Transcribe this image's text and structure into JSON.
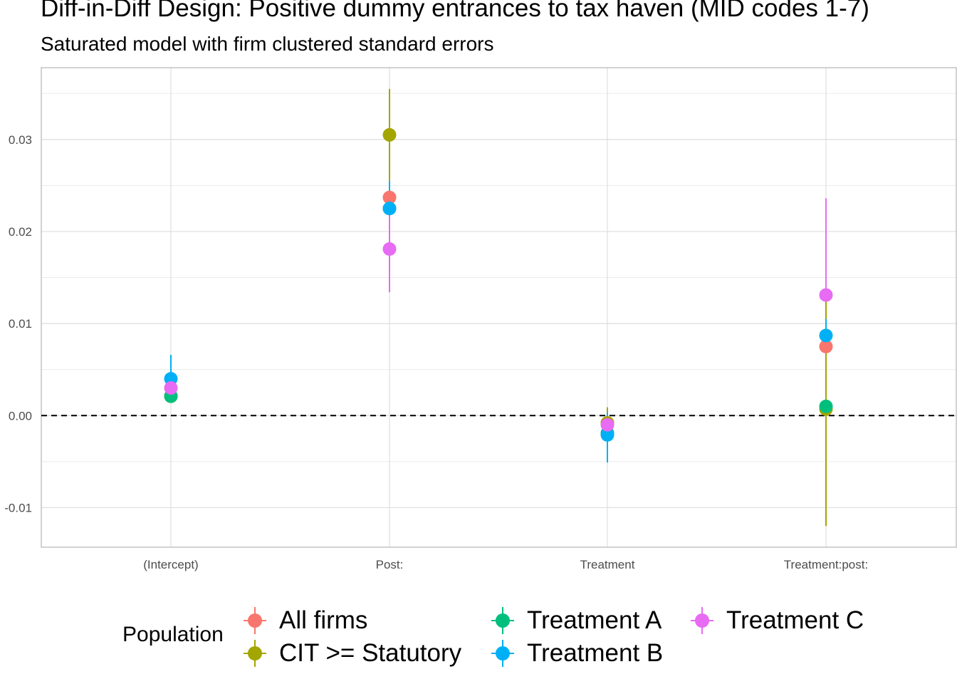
{
  "chart_data": {
    "type": "scatter",
    "title": "Diff-in-Diff Design: Positive dummy entrances to tax haven (MID codes 1-7)",
    "subtitle": "Saturated model with firm clustered standard errors",
    "xlabel": "",
    "ylabel": "",
    "categories": [
      "(Intercept)",
      "Post:",
      "Treatment",
      "Treatment:post:"
    ],
    "y_ticks": [
      -0.01,
      0.0,
      0.01,
      0.02,
      0.03
    ],
    "y_tick_labels": [
      "-0.01",
      "0.00",
      "0.01",
      "0.02",
      "0.03"
    ],
    "ylim": [
      -0.0143,
      0.0378
    ],
    "reference_line": {
      "y": 0,
      "style": "dashed"
    },
    "grid": true,
    "legend": {
      "title": "Population",
      "position": "bottom"
    },
    "series": [
      {
        "name": "All firms",
        "color": "#F8766D",
        "estimates": [
          0.0021,
          0.0237,
          -0.0008,
          0.0075
        ],
        "ci_low": [
          0.0021,
          0.0237,
          -0.0008,
          0.0075
        ],
        "ci_high": [
          0.0021,
          0.0237,
          -0.0008,
          0.0075
        ]
      },
      {
        "name": "CIT >= Statutory",
        "color": "#A3A500",
        "estimates": [
          0.0021,
          0.0305,
          -0.0008,
          0.0007
        ],
        "ci_low": [
          0.0021,
          0.0255,
          -0.0022,
          -0.012
        ],
        "ci_high": [
          0.0021,
          0.0355,
          0.0009,
          0.013
        ]
      },
      {
        "name": "Treatment A",
        "color": "#00BF7D",
        "estimates": [
          0.0021,
          0.0225,
          -0.0019,
          0.001
        ],
        "ci_low": [
          0.0021,
          0.0225,
          -0.0019,
          0.001
        ],
        "ci_high": [
          0.0021,
          0.0225,
          -0.0019,
          0.001
        ]
      },
      {
        "name": "Treatment B",
        "color": "#00B0F6",
        "estimates": [
          0.004,
          0.0225,
          -0.0021,
          0.0087
        ],
        "ci_low": [
          0.0021,
          0.0198,
          -0.0051,
          0.007
        ],
        "ci_high": [
          0.0066,
          0.0255,
          0.0003,
          0.0105
        ]
      },
      {
        "name": "Treatment C",
        "color": "#E76BF3",
        "estimates": [
          0.003,
          0.0181,
          -0.001,
          0.0131
        ],
        "ci_low": [
          0.003,
          0.0134,
          -0.001,
          0.0131
        ],
        "ci_high": [
          0.003,
          0.023,
          -0.001,
          0.0236
        ]
      }
    ]
  }
}
